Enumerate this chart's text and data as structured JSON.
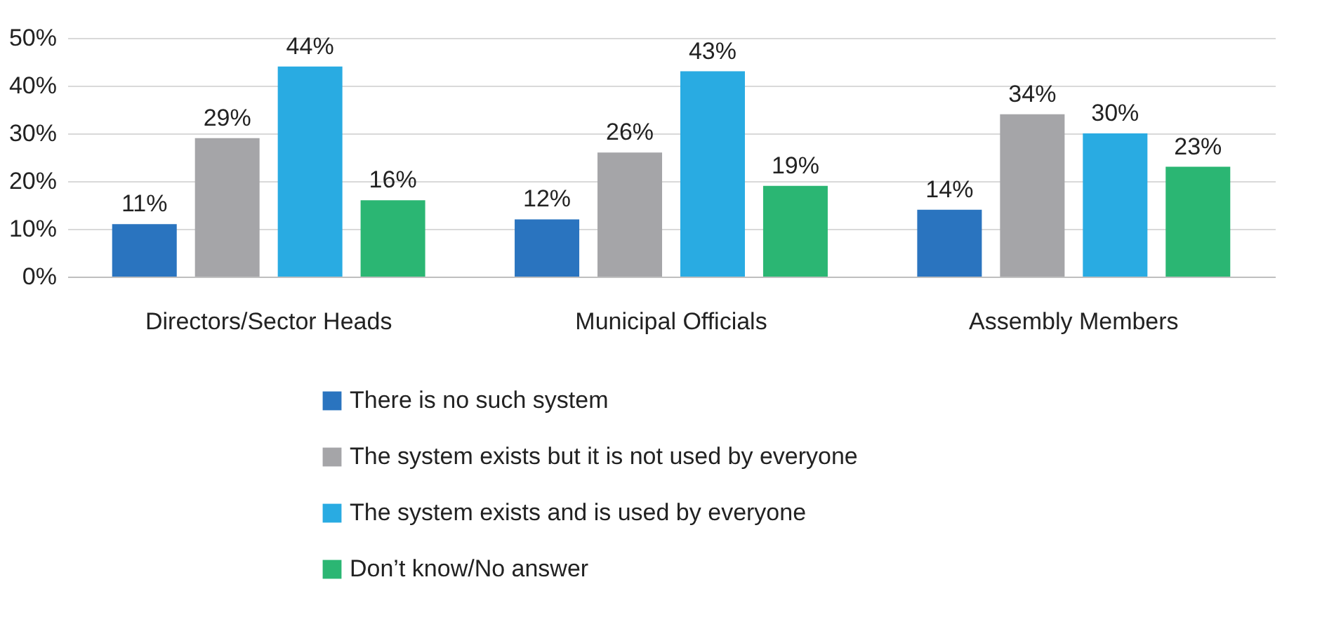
{
  "chart_data": {
    "type": "bar",
    "categories": [
      "Directors/Sector Heads",
      "Municipal Officials",
      "Assembly Members"
    ],
    "series": [
      {
        "name": "There is no such system",
        "color": "#2a74bf",
        "values": [
          11,
          12,
          14
        ],
        "value_labels": [
          "11%",
          "12%",
          "14%"
        ]
      },
      {
        "name": "The system exists but it is not used by everyone",
        "color": "#a5a5a8",
        "values": [
          29,
          26,
          34
        ],
        "value_labels": [
          "29%",
          "26%",
          "34%"
        ]
      },
      {
        "name": "The system exists and is used by everyone",
        "color": "#29abe2",
        "values": [
          44,
          43,
          30
        ],
        "value_labels": [
          "44%",
          "43%",
          "30%"
        ]
      },
      {
        "name": "Don’t know/No answer",
        "color": "#2bb673",
        "values": [
          16,
          19,
          23
        ],
        "value_labels": [
          "16%",
          "19%",
          "23%"
        ]
      }
    ],
    "ylim": [
      0,
      50
    ],
    "yticks": [
      {
        "value": 0,
        "label": "0%"
      },
      {
        "value": 10,
        "label": "10%"
      },
      {
        "value": 20,
        "label": "20%"
      },
      {
        "value": 30,
        "label": "30%"
      },
      {
        "value": 40,
        "label": "40%"
      },
      {
        "value": 50,
        "label": "50%"
      }
    ],
    "grid": "y",
    "legend": "bottom"
  }
}
